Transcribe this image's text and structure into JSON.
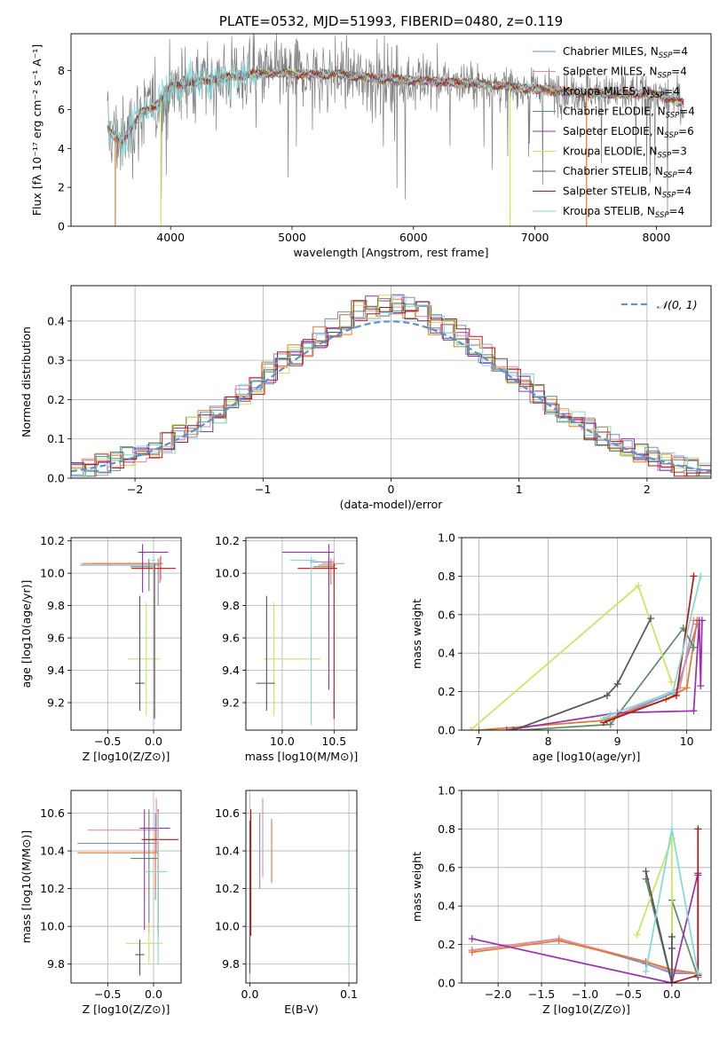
{
  "colors": {
    "chabrier_miles": "#6f93cf",
    "salpeter_miles": "#e58ba2",
    "kroupa_miles": "#e8772e",
    "chabrier_elodie": "#5f8a66",
    "salpeter_elodie": "#9c2fb0",
    "kroupa_elodie": "#cbe55a",
    "chabrier_stelib": "#555555",
    "salpeter_stelib": "#b01717",
    "kroupa_stelib": "#7fdada",
    "gaussian": "#5b8fd6",
    "obs_spectrum": "#808080",
    "grid": "#b0b0b0"
  },
  "chart_data": [
    {
      "id": "spectrum",
      "type": "line",
      "title": "PLATE=0532, MJD=51993, FIBERID=0480, z=0.119",
      "xlabel": "wavelength [Angstrom, rest frame]",
      "ylabel": "Flux [fλ 10⁻¹⁷ erg cm⁻² s⁻¹ A⁻¹]",
      "xlim": [
        3180,
        8450
      ],
      "ylim": [
        0,
        9.9
      ],
      "xticks": [
        "4000",
        "5000",
        "6000",
        "7000",
        "8000"
      ],
      "yticks": [
        "0",
        "2",
        "4",
        "6",
        "8"
      ],
      "grid": false,
      "legend": "right",
      "continuum_points": [
        [
          3480,
          5.0
        ],
        [
          3600,
          4.3
        ],
        [
          3750,
          5.8
        ],
        [
          3900,
          6.3
        ],
        [
          4000,
          7.2
        ],
        [
          4200,
          7.4
        ],
        [
          4500,
          7.7
        ],
        [
          4800,
          7.9
        ],
        [
          5100,
          7.8
        ],
        [
          5400,
          7.8
        ],
        [
          5700,
          7.6
        ],
        [
          6000,
          7.5
        ],
        [
          6300,
          7.4
        ],
        [
          6600,
          7.3
        ],
        [
          6900,
          7.1
        ],
        [
          7300,
          6.9
        ],
        [
          7700,
          6.8
        ],
        [
          8000,
          6.8
        ],
        [
          8230,
          6.3
        ]
      ],
      "series": [
        {
          "name": "Chabrier MILES, N_SSP=4",
          "key": "chabrier_miles"
        },
        {
          "name": "Salpeter MILES, N_SSP=4",
          "key": "salpeter_miles"
        },
        {
          "name": "Kroupa MILES, N_SSP=4",
          "key": "kroupa_miles"
        },
        {
          "name": "Chabrier ELODIE, N_SSP=4",
          "key": "chabrier_elodie"
        },
        {
          "name": "Salpeter ELODIE, N_SSP=6",
          "key": "salpeter_elodie"
        },
        {
          "name": "Kroupa ELODIE, N_SSP=3",
          "key": "kroupa_elodie"
        },
        {
          "name": "Chabrier STELIB, N_SSP=4",
          "key": "chabrier_stelib"
        },
        {
          "name": "Salpeter STELIB, N_SSP=4",
          "key": "salpeter_stelib"
        },
        {
          "name": "Kroupa STELIB, N_SSP=4",
          "key": "kroupa_stelib"
        }
      ]
    },
    {
      "id": "residuals",
      "type": "line",
      "xlabel": "(data-model)/error",
      "ylabel": "Normed distribution",
      "xlim": [
        -2.5,
        2.5
      ],
      "ylim": [
        0,
        0.49
      ],
      "xticks": [
        "−2",
        "−1",
        "0",
        "1",
        "2"
      ],
      "yticks": [
        "0.0",
        "0.1",
        "0.2",
        "0.3",
        "0.4"
      ],
      "grid": true,
      "legend": "top-right",
      "gaussian_label": "𝒩(0, 1)",
      "bin_width": 0.1
    },
    {
      "id": "age_vs_Z",
      "type": "scatter",
      "xlabel": "Z [log10(Z/Z⊙)]",
      "ylabel": "age  [log10(age/yr)]",
      "xlim": [
        -0.9,
        0.3
      ],
      "ylim": [
        9.03,
        10.22
      ],
      "xticks": [
        "−0.5",
        "0.0"
      ],
      "yticks": [
        "9.2",
        "9.4",
        "9.6",
        "9.8",
        "10.0",
        "10.2"
      ],
      "grid": true,
      "points": [
        {
          "key": "chabrier_miles",
          "x": 0.05,
          "y": 10.05,
          "xerr": [
            0.85,
            0.02
          ],
          "yerr": [
            0.25,
            0.04
          ]
        },
        {
          "key": "salpeter_miles",
          "x": 0.08,
          "y": 10.06,
          "xerr": [
            0.75,
            0.02
          ],
          "yerr": [
            0.1,
            0.05
          ]
        },
        {
          "key": "kroupa_miles",
          "x": 0.07,
          "y": 10.06,
          "xerr": [
            0.85,
            0.03
          ],
          "yerr": [
            0.12,
            0.04
          ]
        },
        {
          "key": "chabrier_elodie",
          "x": -0.05,
          "y": 10.04,
          "xerr": [
            0.2,
            0.05
          ],
          "yerr": [
            0.15,
            0.05
          ]
        },
        {
          "key": "salpeter_elodie",
          "x": -0.12,
          "y": 10.13,
          "xerr": [
            0.05,
            0.28
          ],
          "yerr": [
            0.25,
            0.05
          ]
        },
        {
          "key": "kroupa_elodie",
          "x": -0.08,
          "y": 9.47,
          "xerr": [
            0.2,
            0.15
          ],
          "yerr": [
            0.35,
            0.35
          ]
        },
        {
          "key": "chabrier_stelib",
          "x": -0.15,
          "y": 9.32,
          "xerr": [
            0.05,
            0.05
          ],
          "yerr": [
            0.17,
            0.54
          ]
        },
        {
          "key": "salpeter_stelib",
          "x": 0.01,
          "y": 10.03,
          "xerr": [
            0.25,
            0.23
          ],
          "yerr": [
            0.93,
            0.03
          ]
        },
        {
          "key": "kroupa_stelib",
          "x": 0.0,
          "y": 10.08,
          "xerr": [
            0.02,
            0.02
          ],
          "yerr": [
            1.02,
            0.02
          ]
        }
      ]
    },
    {
      "id": "age_vs_mass",
      "type": "scatter",
      "xlabel": "mass [log10(M/M⊙)]",
      "ylabel": "",
      "xlim": [
        9.65,
        10.72
      ],
      "ylim": [
        9.03,
        10.22
      ],
      "xticks": [
        "10.0",
        "10.5"
      ],
      "yticks": [
        "9.2",
        "9.4",
        "9.6",
        "9.8",
        "10.0",
        "10.2"
      ],
      "grid": true,
      "points": [
        {
          "key": "chabrier_miles",
          "x": 10.45,
          "y": 10.07,
          "xerr": [
            0.18,
            0.05
          ],
          "yerr": [
            0.1,
            0.03
          ]
        },
        {
          "key": "salpeter_miles",
          "x": 10.5,
          "y": 10.06,
          "xerr": [
            0.12,
            0.1
          ],
          "yerr": [
            0.1,
            0.04
          ]
        },
        {
          "key": "kroupa_miles",
          "x": 10.47,
          "y": 10.05,
          "xerr": [
            0.12,
            0.05
          ],
          "yerr": [
            0.12,
            0.04
          ]
        },
        {
          "key": "chabrier_elodie",
          "x": 10.45,
          "y": 10.04,
          "xerr": [
            0.15,
            0.05
          ],
          "yerr": [
            0.13,
            0.05
          ]
        },
        {
          "key": "salpeter_elodie",
          "x": 10.45,
          "y": 10.13,
          "xerr": [
            0.45,
            0.05
          ],
          "yerr": [
            0.85,
            0.05
          ]
        },
        {
          "key": "kroupa_elodie",
          "x": 9.92,
          "y": 9.47,
          "xerr": [
            0.1,
            0.45
          ],
          "yerr": [
            0.35,
            0.35
          ]
        },
        {
          "key": "chabrier_stelib",
          "x": 9.85,
          "y": 9.32,
          "xerr": [
            0.1,
            0.08
          ],
          "yerr": [
            0.17,
            0.54
          ]
        },
        {
          "key": "salpeter_stelib",
          "x": 10.5,
          "y": 10.03,
          "xerr": [
            0.35,
            0.03
          ],
          "yerr": [
            0.93,
            0.03
          ]
        },
        {
          "key": "kroupa_stelib",
          "x": 10.28,
          "y": 10.08,
          "xerr": [
            0.2,
            0.05
          ],
          "yerr": [
            1.02,
            0.02
          ]
        }
      ]
    },
    {
      "id": "weight_vs_age",
      "type": "line",
      "xlabel": "age  [log10(age/yr)]",
      "ylabel": "mass weight",
      "xlim": [
        6.75,
        10.35
      ],
      "ylim": [
        0,
        1.0
      ],
      "xticks": [
        "7",
        "8",
        "9",
        "10"
      ],
      "yticks": [
        "0.0",
        "0.2",
        "0.4",
        "0.6",
        "0.8",
        "1.0"
      ],
      "grid": true,
      "series": [
        {
          "key": "chabrier_miles",
          "x": [
            8.8,
            8.85,
            9.85,
            10.15
          ],
          "y": [
            0.05,
            0.05,
            0.2,
            0.55
          ]
        },
        {
          "key": "salpeter_miles",
          "x": [
            8.8,
            8.88,
            9.9,
            10.1
          ],
          "y": [
            0.05,
            0.06,
            0.22,
            0.57
          ]
        },
        {
          "key": "kroupa_miles",
          "x": [
            7.0,
            8.8,
            9.7,
            10.0,
            10.15
          ],
          "y": [
            0.0,
            0.05,
            0.16,
            0.22,
            0.57
          ]
        },
        {
          "key": "chabrier_elodie",
          "x": [
            7.6,
            8.9,
            9.95,
            10.1
          ],
          "y": [
            0.0,
            0.03,
            0.53,
            0.43
          ]
        },
        {
          "key": "salpeter_elodie",
          "x": [
            7.4,
            9.0,
            10.1,
            10.18,
            10.2,
            10.22
          ],
          "y": [
            0.0,
            0.09,
            0.1,
            0.57,
            0.23,
            0.57
          ]
        },
        {
          "key": "kroupa_elodie",
          "x": [
            6.88,
            9.3,
            9.78
          ],
          "y": [
            0.0,
            0.75,
            0.25
          ]
        },
        {
          "key": "chabrier_stelib",
          "x": [
            7.5,
            8.85,
            9.0,
            9.48
          ],
          "y": [
            0.0,
            0.18,
            0.24,
            0.58
          ]
        },
        {
          "key": "salpeter_stelib",
          "x": [
            8.8,
            9.85,
            10.1
          ],
          "y": [
            0.04,
            0.18,
            0.8
          ]
        },
        {
          "key": "kroupa_stelib",
          "x": [
            8.8,
            8.9,
            9.8,
            10.2
          ],
          "y": [
            0.06,
            0.08,
            0.2,
            0.8
          ]
        }
      ]
    },
    {
      "id": "mass_vs_Z",
      "type": "scatter",
      "xlabel": "Z [log10(Z/Z⊙)]",
      "ylabel": "mass [log10(M/M⊙)]",
      "xlim": [
        -0.9,
        0.3
      ],
      "ylim": [
        9.7,
        10.72
      ],
      "xticks": [
        "−0.5",
        "0.0"
      ],
      "yticks": [
        "9.8",
        "10.0",
        "10.2",
        "10.4",
        "10.6"
      ],
      "grid": true,
      "points": [
        {
          "key": "chabrier_miles",
          "x": 0.02,
          "y": 10.44,
          "xerr": [
            0.85,
            0.02
          ],
          "yerr": [
            0.3,
            0.16
          ]
        },
        {
          "key": "salpeter_miles",
          "x": 0.03,
          "y": 10.51,
          "xerr": [
            0.75,
            0.02
          ],
          "yerr": [
            0.12,
            0.17
          ]
        },
        {
          "key": "kroupa_miles",
          "x": 0.02,
          "y": 10.39,
          "xerr": [
            0.85,
            0.03
          ],
          "yerr": [
            0.2,
            0.12
          ]
        },
        {
          "key": "chabrier_elodie",
          "x": -0.05,
          "y": 10.36,
          "xerr": [
            0.2,
            0.1
          ],
          "yerr": [
            0.4,
            0.26
          ]
        },
        {
          "key": "salpeter_elodie",
          "x": -0.1,
          "y": 10.52,
          "xerr": [
            0.05,
            0.28
          ],
          "yerr": [
            0.54,
            0.1
          ]
        },
        {
          "key": "kroupa_elodie",
          "x": -0.05,
          "y": 9.91,
          "xerr": [
            0.25,
            0.15
          ],
          "yerr": [
            0.11,
            0.11
          ]
        },
        {
          "key": "chabrier_stelib",
          "x": -0.15,
          "y": 9.85,
          "xerr": [
            0.05,
            0.05
          ],
          "yerr": [
            0.11,
            0.08
          ]
        },
        {
          "key": "salpeter_stelib",
          "x": 0.05,
          "y": 10.46,
          "xerr": [
            0.18,
            0.22
          ],
          "yerr": [
            0.51,
            0.16
          ]
        },
        {
          "key": "kroupa_stelib",
          "x": 0.05,
          "y": 10.29,
          "xerr": [
            0.15,
            0.1
          ],
          "yerr": [
            0.49,
            0.32
          ]
        }
      ]
    },
    {
      "id": "mass_vs_ebv",
      "type": "scatter",
      "xlabel": "E(B-V)",
      "ylabel": "",
      "xlim": [
        -0.004,
        0.108
      ],
      "ylim": [
        9.7,
        10.72
      ],
      "xticks": [
        "0.0",
        "0.1"
      ],
      "yticks": [
        "9.8",
        "10.0",
        "10.2",
        "10.4",
        "10.6"
      ],
      "grid": true,
      "bars": [
        {
          "key": "chabrier_stelib",
          "x": 0.0,
          "ylo": 9.75,
          "yhi": 10.56
        },
        {
          "key": "salpeter_stelib",
          "x": 0.001,
          "ylo": 9.95,
          "yhi": 10.62
        },
        {
          "key": "chabrier_miles",
          "x": 0.01,
          "ylo": 10.2,
          "yhi": 10.6
        },
        {
          "key": "salpeter_miles",
          "x": 0.013,
          "ylo": 10.26,
          "yhi": 10.68
        },
        {
          "key": "kroupa_miles",
          "x": 0.022,
          "ylo": 10.23,
          "yhi": 10.57
        },
        {
          "key": "kroupa_stelib",
          "x": 0.1,
          "ylo": 9.78,
          "yhi": 10.41
        }
      ]
    },
    {
      "id": "weight_vs_Z",
      "type": "line",
      "xlabel": "Z [log10(Z/Z⊙)]",
      "ylabel": "mass weight",
      "xlim": [
        -2.42,
        0.45
      ],
      "ylim": [
        0,
        1.0
      ],
      "xticks": [
        "−2.0",
        "−1.5",
        "−1.0",
        "−0.5",
        "0.0"
      ],
      "yticks": [
        "0.0",
        "0.2",
        "0.4",
        "0.6",
        "0.8",
        "1.0"
      ],
      "grid": true,
      "series": [
        {
          "key": "chabrier_miles",
          "x": [
            -2.3,
            -1.3,
            -0.3,
            0.0,
            0.3
          ],
          "y": [
            0.17,
            0.23,
            0.1,
            0.05,
            0.05
          ]
        },
        {
          "key": "salpeter_miles",
          "x": [
            -2.3,
            -1.3,
            -0.3,
            0.0,
            0.3
          ],
          "y": [
            0.17,
            0.23,
            0.11,
            0.06,
            0.05
          ]
        },
        {
          "key": "kroupa_miles",
          "x": [
            -2.3,
            -1.3,
            -0.3,
            0.0,
            0.3
          ],
          "y": [
            0.16,
            0.22,
            0.11,
            0.07,
            0.05
          ]
        },
        {
          "key": "chabrier_elodie",
          "x": [
            -0.3,
            0.0,
            0.0,
            0.3
          ],
          "y": [
            0.54,
            0.0,
            0.43,
            0.03
          ]
        },
        {
          "key": "salpeter_elodie",
          "x": [
            -2.3,
            0.0,
            0.3,
            0.3,
            0.3
          ],
          "y": [
            0.23,
            0.0,
            0.57,
            0.04,
            0.56
          ]
        },
        {
          "key": "kroupa_elodie",
          "x": [
            -0.4,
            0.0,
            0.0
          ],
          "y": [
            0.25,
            0.75,
            0.0
          ]
        },
        {
          "key": "chabrier_stelib",
          "x": [
            -0.3,
            0.0,
            0.0,
            0.0
          ],
          "y": [
            0.58,
            0.0,
            0.24,
            0.18
          ]
        },
        {
          "key": "salpeter_stelib",
          "x": [
            0.0,
            0.3,
            0.3
          ],
          "y": [
            0.0,
            0.04,
            0.8
          ]
        },
        {
          "key": "kroupa_stelib",
          "x": [
            -0.3,
            0.0,
            0.3
          ],
          "y": [
            0.06,
            0.8,
            0.05
          ]
        }
      ]
    }
  ]
}
